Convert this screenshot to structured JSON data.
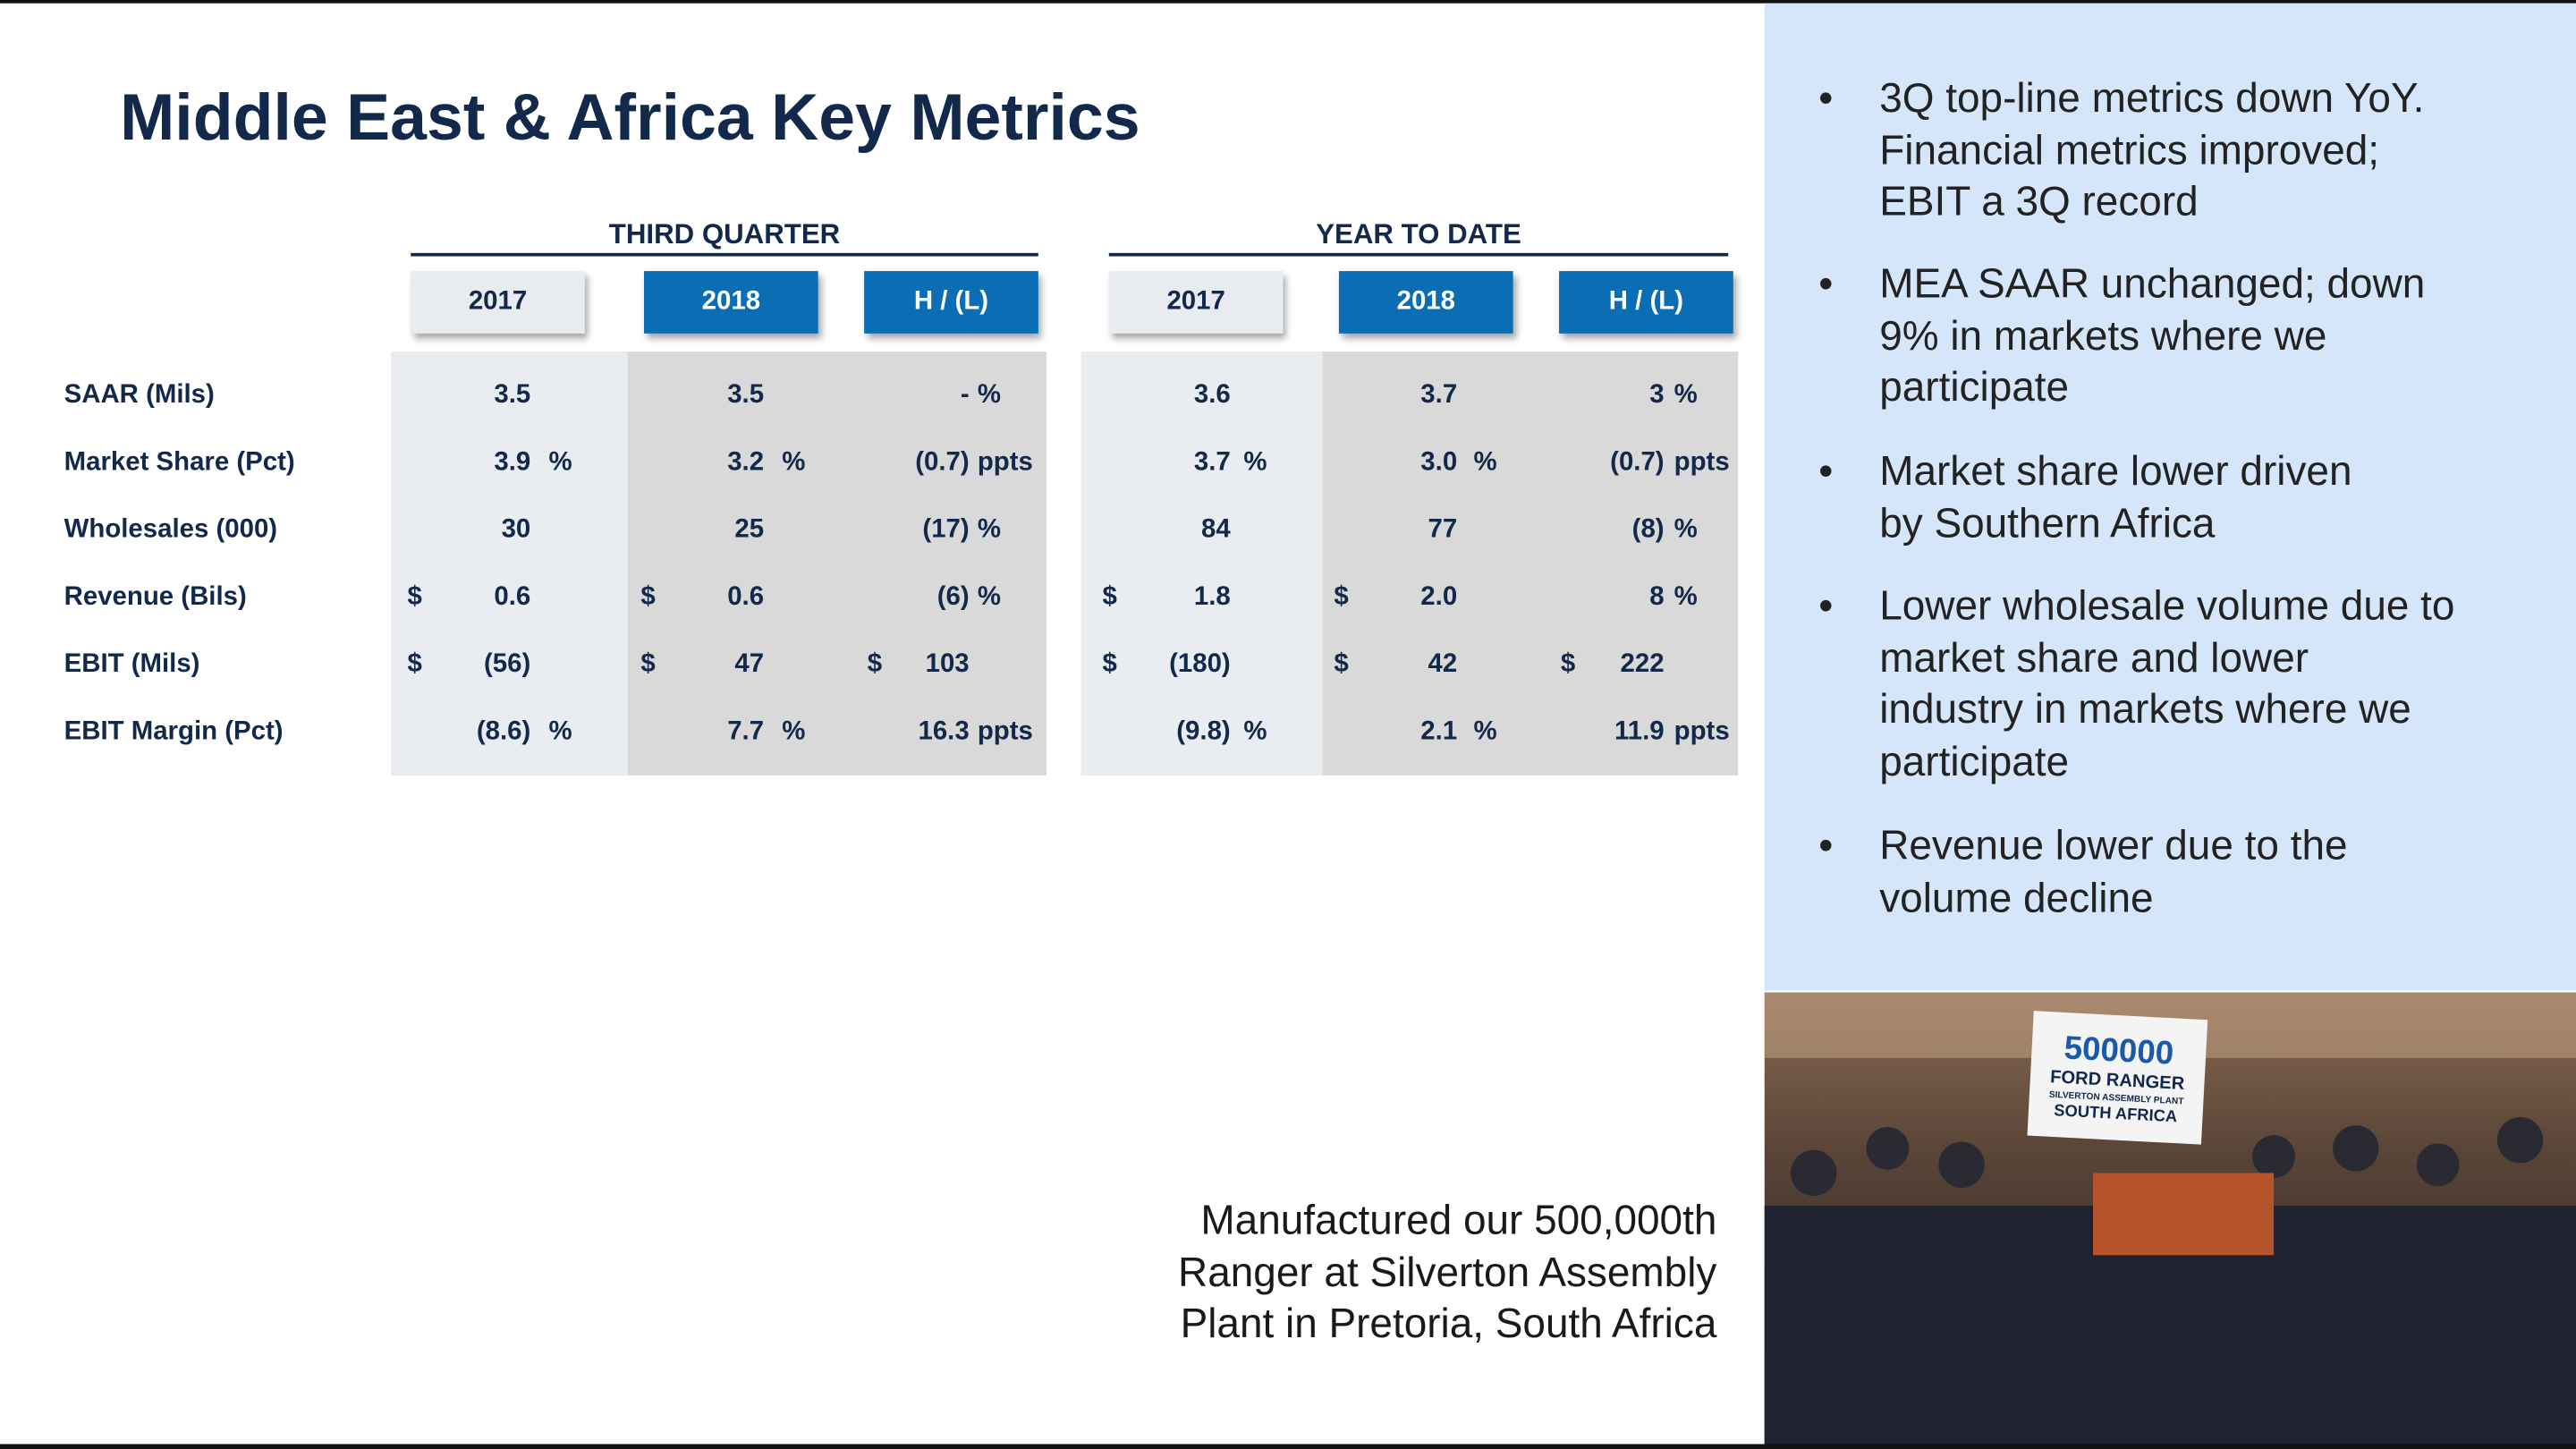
{
  "header": {
    "title": "Middle East & Africa Key Metrics"
  },
  "table": {
    "groups": [
      {
        "title": "THIRD QUARTER",
        "columns": [
          "2017",
          "2018",
          "H / (L)"
        ]
      },
      {
        "title": "YEAR TO DATE",
        "columns": [
          "2017",
          "2018",
          "H / (L)"
        ]
      }
    ],
    "rows": [
      {
        "label": "SAAR (Mils)",
        "cells": [
          {
            "value": "3.5"
          },
          {
            "value": "3.5"
          },
          {
            "value": "-",
            "suffix": "%"
          },
          {
            "value": "3.6"
          },
          {
            "value": "3.7"
          },
          {
            "value": "3",
            "suffix": "%"
          }
        ]
      },
      {
        "label": "Market Share (Pct)",
        "cells": [
          {
            "value": "3.9",
            "suffix": "%"
          },
          {
            "value": "3.2",
            "suffix": "%"
          },
          {
            "value": "(0.7)",
            "suffix": "ppts"
          },
          {
            "value": "3.7",
            "suffix": "%"
          },
          {
            "value": "3.0",
            "suffix": "%"
          },
          {
            "value": "(0.7)",
            "suffix": "ppts"
          }
        ]
      },
      {
        "label": "Wholesales (000)",
        "cells": [
          {
            "value": "30"
          },
          {
            "value": "25"
          },
          {
            "value": "(17)",
            "suffix": "%"
          },
          {
            "value": "84"
          },
          {
            "value": "77"
          },
          {
            "value": "(8)",
            "suffix": "%"
          }
        ]
      },
      {
        "label": "Revenue (Bils)",
        "cells": [
          {
            "prefix": "$",
            "value": "0.6"
          },
          {
            "prefix": "$",
            "value": "0.6"
          },
          {
            "value": "(6)",
            "suffix": "%"
          },
          {
            "prefix": "$",
            "value": "1.8"
          },
          {
            "prefix": "$",
            "value": "2.0"
          },
          {
            "value": "8",
            "suffix": "%"
          }
        ]
      },
      {
        "label": "EBIT (Mils)",
        "cells": [
          {
            "prefix": "$",
            "value": "(56)"
          },
          {
            "prefix": "$",
            "value": "47"
          },
          {
            "prefix": "$",
            "value": "103"
          },
          {
            "prefix": "$",
            "value": "(180)"
          },
          {
            "prefix": "$",
            "value": "42"
          },
          {
            "prefix": "$",
            "value": "222"
          }
        ]
      },
      {
        "label": "EBIT Margin (Pct)",
        "cells": [
          {
            "value": "(8.6)",
            "suffix": "%"
          },
          {
            "value": "7.7",
            "suffix": "%"
          },
          {
            "value": "16.3",
            "suffix": "ppts"
          },
          {
            "value": "(9.8)",
            "suffix": "%"
          },
          {
            "value": "2.1",
            "suffix": "%"
          },
          {
            "value": "11.9",
            "suffix": "ppts"
          }
        ]
      }
    ]
  },
  "bullets": [
    {
      "marker": "•",
      "lines": [
        "3Q top-line metrics down YoY.",
        "Financial metrics improved;",
        "EBIT a 3Q record"
      ]
    },
    {
      "marker": "•",
      "lines": [
        "MEA SAAR unchanged; down",
        "9% in markets where we",
        "participate"
      ]
    },
    {
      "marker": "•",
      "lines": [
        "Market share lower driven",
        "by Southern Africa"
      ]
    },
    {
      "marker": "•",
      "lines": [
        "Lower wholesale volume due to",
        "market share and lower",
        "industry in markets where we",
        "participate"
      ]
    },
    {
      "marker": "•",
      "lines": [
        "Revenue lower due to the",
        "volume decline"
      ]
    }
  ],
  "caption": {
    "lines": [
      "Manufactured our 500,000th",
      "Ranger at Silverton Assembly",
      "Plant in Pretoria, South Africa"
    ]
  },
  "photo": {
    "banner": [
      "500000",
      "FORD RANGER",
      "SILVERTON ASSEMBLY PLANT",
      "SOUTH AFRICA"
    ]
  }
}
